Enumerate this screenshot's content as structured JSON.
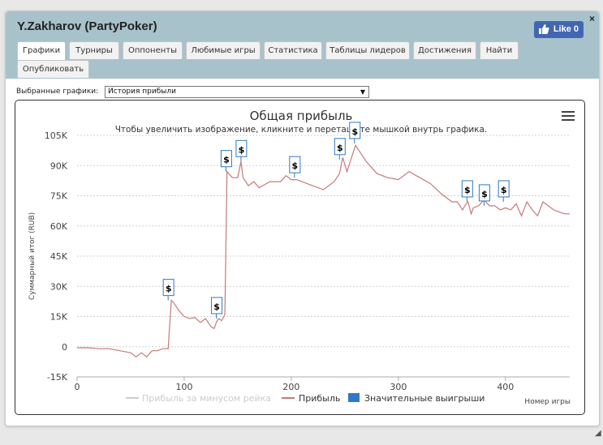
{
  "window": {
    "title": "Y.Zakharov (PartyPoker)",
    "close": "×",
    "like_label": "Like 0"
  },
  "tabs": [
    {
      "label": "Графики",
      "active": true
    },
    {
      "label": "Турниры"
    },
    {
      "label": "Оппоненты"
    },
    {
      "label": "Любимые игры"
    },
    {
      "label": "Статистика"
    },
    {
      "label": "Таблицы лидеров"
    },
    {
      "label": "Достижения"
    },
    {
      "label": "Найти"
    },
    {
      "label": "Опубликовать"
    }
  ],
  "selector": {
    "label": "Выбранные графики:",
    "value": "История прибыли"
  },
  "chart_data": {
    "type": "line",
    "title": "Общая прибыль",
    "subtitle": "Чтобы увеличить изображение, кликните и перетащите мышкой внутрь графика.",
    "xlabel": "Номер игры",
    "ylabel": "Суммарный итог (RUB)",
    "xlim": [
      0,
      460
    ],
    "ylim": [
      -15000,
      105000
    ],
    "x_ticks": [
      "0",
      "100",
      "200",
      "300",
      "400"
    ],
    "y_ticks": [
      "105K",
      "90K",
      "75K",
      "60K",
      "45K",
      "30K",
      "15K",
      "0",
      "-15K"
    ],
    "grid": true,
    "legend": [
      "Прибыль за минусом рейка",
      "Прибыль",
      "Значительные выигрыши"
    ],
    "legend_placement": "bottom",
    "colors": {
      "profit": "#c47a7a",
      "rake_disabled": "#cccccc",
      "big_wins": "#2f78c4"
    },
    "series": [
      {
        "name": "Прибыль",
        "x": [
          0,
          10,
          20,
          30,
          40,
          50,
          55,
          60,
          65,
          70,
          75,
          80,
          83,
          85,
          88,
          90,
          95,
          100,
          105,
          110,
          115,
          120,
          125,
          128,
          130,
          132,
          135,
          138,
          140,
          145,
          150,
          153,
          155,
          160,
          165,
          170,
          180,
          190,
          195,
          200,
          205,
          210,
          220,
          230,
          240,
          245,
          248,
          252,
          255,
          260,
          265,
          270,
          280,
          290,
          300,
          310,
          320,
          330,
          340,
          350,
          355,
          360,
          362,
          365,
          368,
          370,
          375,
          380,
          385,
          390,
          395,
          400,
          405,
          410,
          415,
          420,
          425,
          430,
          435,
          440,
          445,
          450,
          455,
          460
        ],
        "y": [
          -500,
          -500,
          -1000,
          -1000,
          -2000,
          -3000,
          -5000,
          -3000,
          -5000,
          -2000,
          -2000,
          -1000,
          -1000,
          -1000,
          23000,
          22000,
          18000,
          15000,
          14000,
          14500,
          12000,
          14000,
          10000,
          9000,
          12000,
          14000,
          13000,
          16000,
          87000,
          84000,
          84000,
          92000,
          84000,
          80000,
          82000,
          79000,
          82000,
          82000,
          85000,
          83000,
          83000,
          82000,
          80000,
          78000,
          82000,
          86000,
          94000,
          87000,
          92000,
          100000,
          96000,
          92000,
          86000,
          84000,
          83000,
          87000,
          84000,
          81000,
          76000,
          72000,
          72000,
          68000,
          70000,
          72000,
          66000,
          69000,
          70000,
          73000,
          70000,
          70000,
          68000,
          69000,
          68000,
          71000,
          65000,
          72000,
          68000,
          65000,
          72000,
          70000,
          68000,
          67000,
          66000,
          66000
        ]
      },
      {
        "name": "Значительные выигрыши",
        "x": [
          85,
          130,
          139,
          153,
          203,
          245,
          259,
          364,
          380,
          398
        ],
        "y": [
          23000,
          14000,
          87000,
          92000,
          84000,
          93000,
          101000,
          72000,
          70000,
          72000
        ]
      }
    ]
  }
}
